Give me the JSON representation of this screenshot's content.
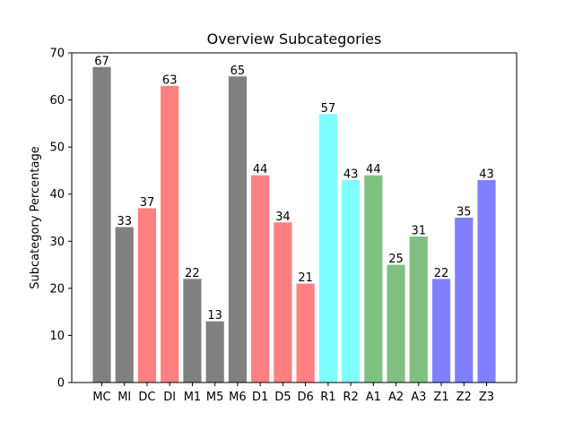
{
  "chart_data": {
    "type": "bar",
    "title": "Overview Subcategories",
    "xlabel": "",
    "ylabel": "Subcategory Percentage",
    "ylim": [
      0,
      70
    ],
    "yticks": [
      0,
      10,
      20,
      30,
      40,
      50,
      60,
      70
    ],
    "grid": false,
    "categories": [
      "MC",
      "MI",
      "DC",
      "DI",
      "M1",
      "M5",
      "M6",
      "D1",
      "D5",
      "D6",
      "R1",
      "R2",
      "A1",
      "A2",
      "A3",
      "Z1",
      "Z2",
      "Z3"
    ],
    "values": [
      67,
      33,
      37,
      63,
      22,
      13,
      65,
      44,
      34,
      21,
      57,
      43,
      44,
      25,
      31,
      22,
      35,
      43
    ],
    "bar_colors": [
      "#808080",
      "#808080",
      "#ff8080",
      "#ff8080",
      "#808080",
      "#808080",
      "#808080",
      "#ff8080",
      "#ff8080",
      "#ff8080",
      "#80ffff",
      "#80ffff",
      "#80c080",
      "#80c080",
      "#80c080",
      "#8080ff",
      "#8080ff",
      "#8080ff"
    ],
    "data_labels": [
      "67",
      "33",
      "37",
      "63",
      "22",
      "13",
      "65",
      "44",
      "34",
      "21",
      "57",
      "43",
      "44",
      "25",
      "31",
      "22",
      "35",
      "43"
    ]
  }
}
